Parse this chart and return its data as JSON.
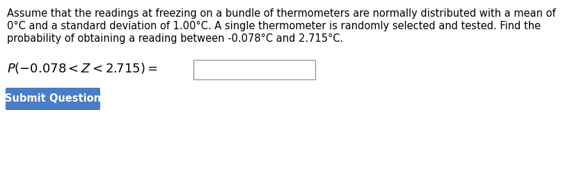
{
  "background_color": "#ffffff",
  "line1": "Assume that the readings at freezing on a bundle of thermometers are normally distributed with a mean of",
  "line2": "0°C and a standard deviation of 1.00°C. A single thermometer is randomly selected and tested. Find the",
  "line3": "probability of obtaining a reading between -0.078°C and 2.715°C.",
  "formula_text": "$P(-0.078 < Z < 2.715) =$",
  "button_text": "Submit Question",
  "button_color": "#4a7cc7",
  "button_text_color": "#ffffff",
  "para_fontsize": 10.5,
  "formula_fontsize": 13.0,
  "button_fontsize": 10.5
}
